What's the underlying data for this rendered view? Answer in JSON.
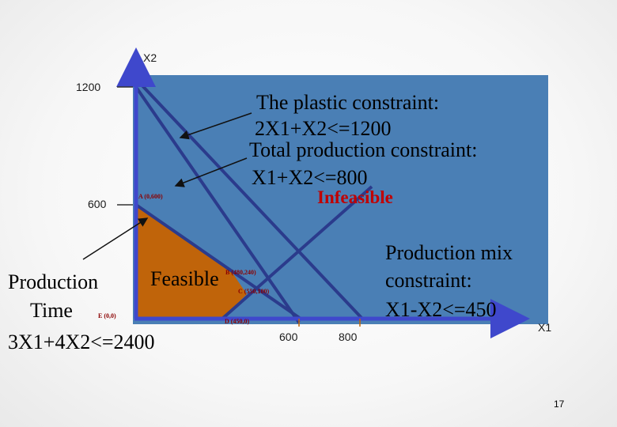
{
  "axes": {
    "y_axis_label": "X2",
    "x_axis_label": "X1",
    "y_ticks": [
      "1200",
      "600"
    ],
    "x_ticks": [
      "600",
      "800"
    ]
  },
  "points": {
    "a": "A (0,600)",
    "b": "B (480,240)",
    "c": "C (550,100)",
    "d": "D (450,0)",
    "e": "E (0,0)"
  },
  "regions": {
    "feasible": "Feasible",
    "infeasible": "Infeasible"
  },
  "annotations": {
    "plastic_line1": "The plastic constraint:",
    "plastic_line2": "2X1+X2<=1200",
    "total_line1": "Total production constraint:",
    "total_line2": "X1+X2<=800",
    "mix_line1": "Production mix",
    "mix_line2": "constraint:",
    "mix_line3": "X1-X2<=450",
    "time_line1": "Production",
    "time_line2": "Time",
    "time_line3": "3X1+4X2<=2400"
  },
  "page_number": "17",
  "colors": {
    "infeasible_fill": "#4a7fb5",
    "feasible_fill": "#c0640a",
    "axis": "#3f48cc",
    "constraint_line": "#2b3b8c"
  }
}
